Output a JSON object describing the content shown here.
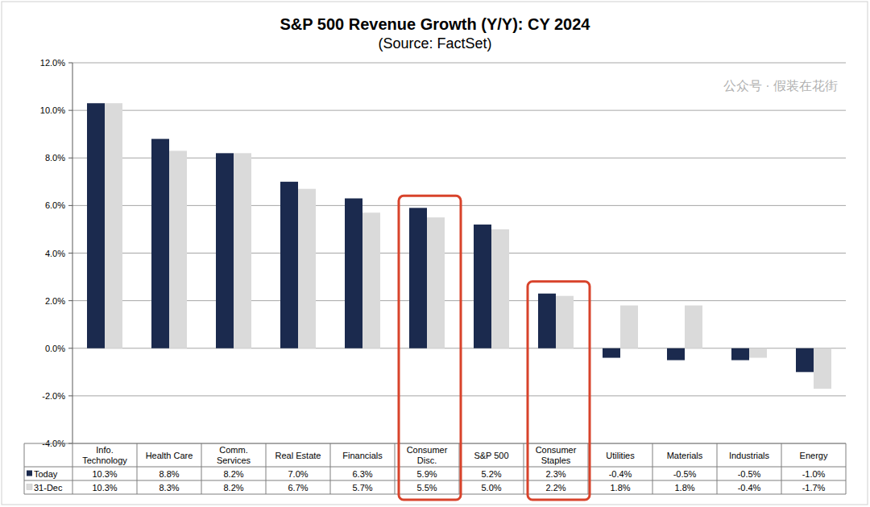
{
  "chart_data": {
    "type": "bar",
    "title": "S&P 500 Revenue Growth (Y/Y): CY 2024",
    "subtitle": "(Source: FactSet)",
    "categories": [
      "Info. Technology",
      "Health Care",
      "Comm. Services",
      "Real Estate",
      "Financials",
      "Consumer Disc.",
      "S&P 500",
      "Consumer Staples",
      "Utilities",
      "Materials",
      "Industrials",
      "Energy"
    ],
    "series": [
      {
        "name": "Today",
        "color": "#1b2a4e",
        "values": [
          10.3,
          8.8,
          8.2,
          7.0,
          6.3,
          5.9,
          5.2,
          2.3,
          -0.4,
          -0.5,
          -0.5,
          -1.0
        ],
        "value_labels": [
          "10.3%",
          "8.8%",
          "8.2%",
          "7.0%",
          "6.3%",
          "5.9%",
          "5.2%",
          "2.3%",
          "-0.4%",
          "-0.5%",
          "-0.5%",
          "-1.0%"
        ]
      },
      {
        "name": "31-Dec",
        "color": "#dadada",
        "values": [
          10.3,
          8.3,
          8.2,
          6.7,
          5.7,
          5.5,
          5.0,
          2.2,
          1.8,
          1.8,
          -0.4,
          -1.7
        ],
        "value_labels": [
          "10.3%",
          "8.3%",
          "8.2%",
          "6.7%",
          "5.7%",
          "5.5%",
          "5.0%",
          "2.2%",
          "1.8%",
          "1.8%",
          "-0.4%",
          "-1.7%"
        ]
      }
    ],
    "ylim": [
      -4,
      12
    ],
    "yticks": [
      {
        "value": -4,
        "label": "-4.0%"
      },
      {
        "value": -2,
        "label": "-2.0%"
      },
      {
        "value": 0,
        "label": "0.0%"
      },
      {
        "value": 2,
        "label": "2.0%"
      },
      {
        "value": 4,
        "label": "4.0%"
      },
      {
        "value": 6,
        "label": "6.0%"
      },
      {
        "value": 8,
        "label": "8.0%"
      },
      {
        "value": 10,
        "label": "10.0%"
      },
      {
        "value": 12,
        "label": "12.0%"
      }
    ],
    "grid": true,
    "legend": "bottom-left",
    "watermark": "公众号 · 假装在花街"
  }
}
